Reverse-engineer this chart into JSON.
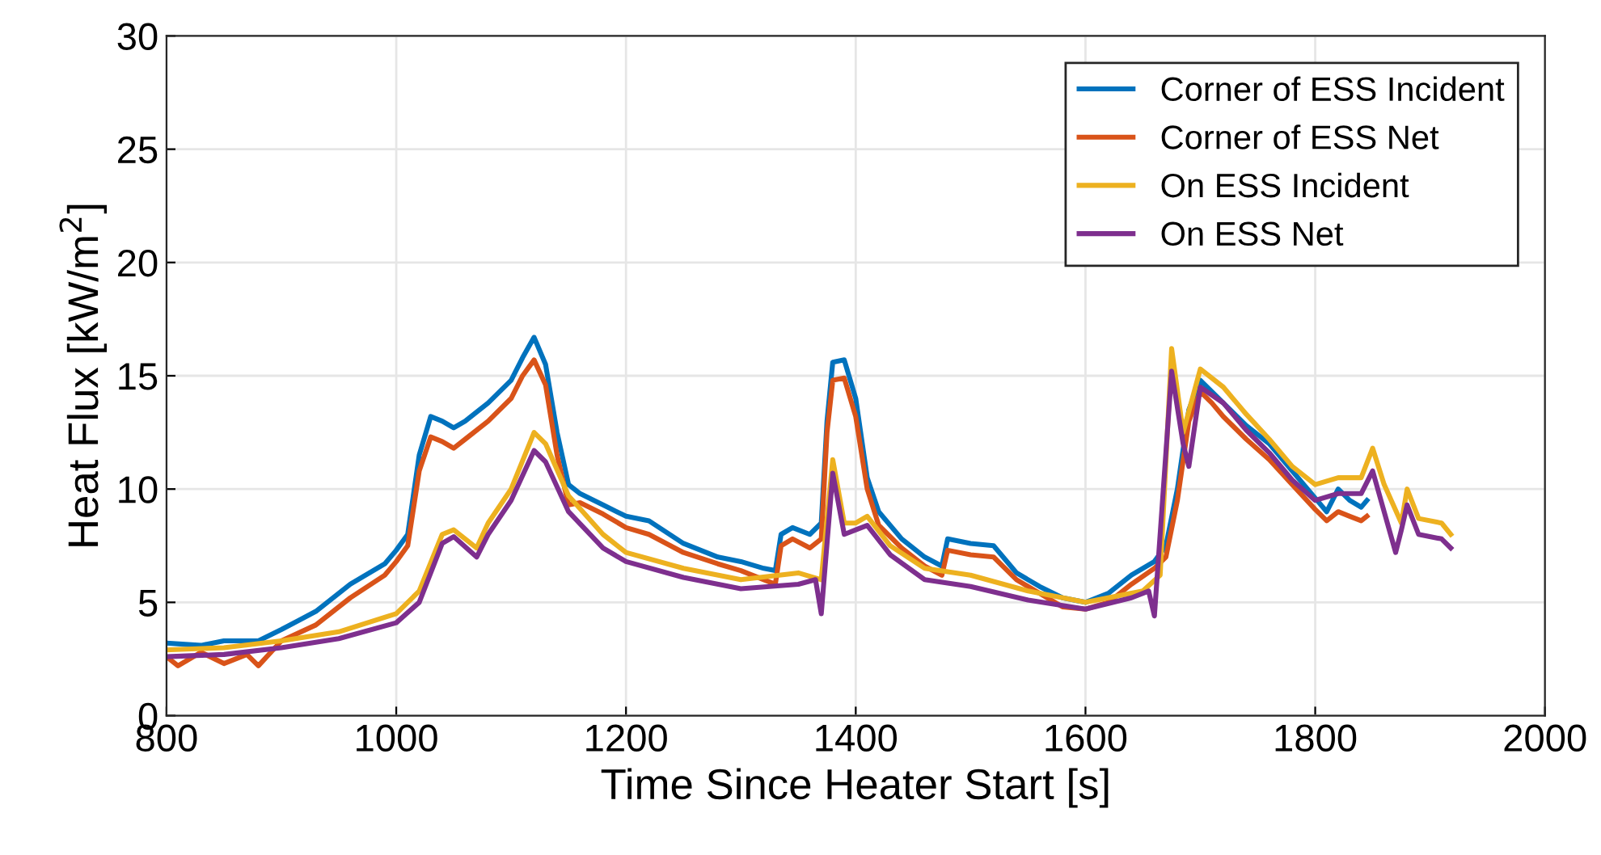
{
  "chart_data": {
    "type": "line",
    "xlabel": "Time Since Heater Start [s]",
    "ylabel": "Heat Flux [kW/m$^{2}$]",
    "xlim": [
      800,
      2000
    ],
    "xticks": [
      800,
      1000,
      1200,
      1400,
      1600,
      1800,
      2000
    ],
    "ylim": [
      0,
      30
    ],
    "yticks": [
      0,
      5,
      10,
      15,
      20,
      25,
      30
    ],
    "grid": true,
    "legend": "top right",
    "line_style": "solid",
    "marker": "none",
    "series": [
      {
        "name": "Corner of ESS Incident",
        "color": "#0072bd",
        "x": [
          800,
          830,
          850,
          880,
          900,
          930,
          960,
          990,
          1000,
          1010,
          1020,
          1030,
          1040,
          1050,
          1060,
          1080,
          1100,
          1110,
          1120,
          1130,
          1140,
          1150,
          1160,
          1180,
          1200,
          1220,
          1250,
          1280,
          1300,
          1320,
          1330,
          1335,
          1345,
          1360,
          1370,
          1375,
          1380,
          1390,
          1400,
          1410,
          1420,
          1440,
          1460,
          1475,
          1480,
          1500,
          1520,
          1540,
          1560,
          1580,
          1600,
          1620,
          1640,
          1660,
          1670,
          1680,
          1690,
          1700,
          1710,
          1720,
          1740,
          1760,
          1780,
          1800,
          1810,
          1820,
          1830,
          1840,
          1845
        ],
        "values": [
          3.2,
          3.1,
          3.3,
          3.3,
          3.8,
          4.6,
          5.8,
          6.7,
          7.3,
          8.0,
          11.5,
          13.2,
          13.0,
          12.7,
          13.0,
          13.8,
          14.8,
          15.8,
          16.7,
          15.5,
          12.5,
          10.2,
          9.8,
          9.3,
          8.8,
          8.6,
          7.6,
          7.0,
          6.8,
          6.5,
          6.4,
          8.0,
          8.3,
          8.0,
          8.5,
          13.0,
          15.6,
          15.7,
          14.0,
          10.5,
          9.0,
          7.8,
          7.0,
          6.6,
          7.8,
          7.6,
          7.5,
          6.3,
          5.7,
          5.2,
          5.0,
          5.4,
          6.2,
          6.8,
          7.5,
          10.0,
          13.5,
          14.8,
          14.3,
          13.8,
          12.8,
          12.0,
          10.8,
          9.6,
          9.0,
          10.0,
          9.5,
          9.2,
          9.5
        ]
      },
      {
        "name": "Corner of ESS Net",
        "color": "#d95319",
        "x": [
          800,
          810,
          830,
          850,
          870,
          880,
          900,
          930,
          960,
          990,
          1000,
          1010,
          1020,
          1030,
          1040,
          1050,
          1060,
          1080,
          1100,
          1110,
          1120,
          1130,
          1140,
          1150,
          1160,
          1180,
          1200,
          1220,
          1250,
          1280,
          1300,
          1320,
          1330,
          1335,
          1345,
          1360,
          1370,
          1375,
          1380,
          1390,
          1400,
          1410,
          1420,
          1440,
          1460,
          1475,
          1480,
          1500,
          1520,
          1540,
          1560,
          1580,
          1600,
          1620,
          1640,
          1660,
          1670,
          1680,
          1690,
          1700,
          1710,
          1720,
          1740,
          1760,
          1780,
          1800,
          1810,
          1820,
          1830,
          1840,
          1845
        ],
        "values": [
          2.6,
          2.2,
          2.8,
          2.3,
          2.7,
          2.2,
          3.3,
          4.0,
          5.2,
          6.2,
          6.8,
          7.5,
          10.8,
          12.3,
          12.1,
          11.8,
          12.2,
          13.0,
          14.0,
          15.0,
          15.7,
          14.6,
          11.5,
          9.3,
          9.4,
          8.9,
          8.3,
          8.0,
          7.2,
          6.7,
          6.4,
          6.0,
          5.8,
          7.5,
          7.8,
          7.4,
          7.8,
          12.5,
          14.8,
          14.9,
          13.2,
          10.0,
          8.4,
          7.4,
          6.6,
          6.2,
          7.3,
          7.1,
          7.0,
          6.0,
          5.4,
          4.8,
          4.7,
          5.0,
          5.8,
          6.5,
          7.0,
          9.5,
          13.0,
          14.3,
          13.8,
          13.2,
          12.2,
          11.3,
          10.2,
          9.1,
          8.6,
          9.0,
          8.8,
          8.6,
          8.8
        ]
      },
      {
        "name": "On ESS Incident",
        "color": "#edb120",
        "x": [
          800,
          850,
          900,
          950,
          1000,
          1020,
          1040,
          1050,
          1070,
          1080,
          1100,
          1120,
          1130,
          1150,
          1180,
          1200,
          1250,
          1300,
          1350,
          1370,
          1380,
          1390,
          1400,
          1410,
          1430,
          1460,
          1500,
          1550,
          1600,
          1650,
          1665,
          1675,
          1685,
          1700,
          1720,
          1740,
          1760,
          1780,
          1800,
          1820,
          1840,
          1850,
          1860,
          1875,
          1880,
          1890,
          1910,
          1918
        ],
        "values": [
          2.9,
          3.0,
          3.3,
          3.7,
          4.5,
          5.5,
          8.0,
          8.2,
          7.4,
          8.5,
          10.0,
          12.5,
          12.0,
          9.7,
          8.0,
          7.2,
          6.5,
          6.0,
          6.3,
          6.0,
          11.3,
          8.5,
          8.5,
          8.8,
          7.5,
          6.5,
          6.2,
          5.5,
          5.0,
          5.5,
          6.2,
          16.2,
          12.5,
          15.3,
          14.5,
          13.3,
          12.2,
          11.0,
          10.2,
          10.5,
          10.5,
          11.8,
          10.2,
          8.5,
          10.0,
          8.7,
          8.5,
          8.0
        ]
      },
      {
        "name": "On ESS Net",
        "color": "#7e2f8e",
        "x": [
          800,
          850,
          900,
          950,
          1000,
          1020,
          1040,
          1050,
          1070,
          1080,
          1100,
          1120,
          1130,
          1150,
          1180,
          1200,
          1250,
          1300,
          1350,
          1365,
          1370,
          1380,
          1390,
          1400,
          1410,
          1430,
          1460,
          1500,
          1550,
          1600,
          1640,
          1655,
          1660,
          1675,
          1685,
          1690,
          1700,
          1720,
          1740,
          1760,
          1780,
          1800,
          1820,
          1840,
          1850,
          1860,
          1870,
          1875,
          1880,
          1890,
          1910,
          1918
        ],
        "values": [
          2.6,
          2.7,
          3.0,
          3.4,
          4.1,
          5.0,
          7.6,
          7.9,
          7.0,
          8.0,
          9.5,
          11.7,
          11.2,
          9.0,
          7.4,
          6.8,
          6.1,
          5.6,
          5.8,
          6.0,
          4.5,
          10.7,
          8.0,
          8.2,
          8.4,
          7.1,
          6.0,
          5.7,
          5.1,
          4.7,
          5.2,
          5.5,
          4.4,
          15.2,
          12.0,
          11.0,
          14.5,
          13.8,
          12.6,
          11.6,
          10.4,
          9.5,
          9.8,
          9.8,
          10.8,
          9.0,
          7.2,
          8.2,
          9.3,
          8.0,
          7.8,
          7.4
        ]
      }
    ]
  }
}
